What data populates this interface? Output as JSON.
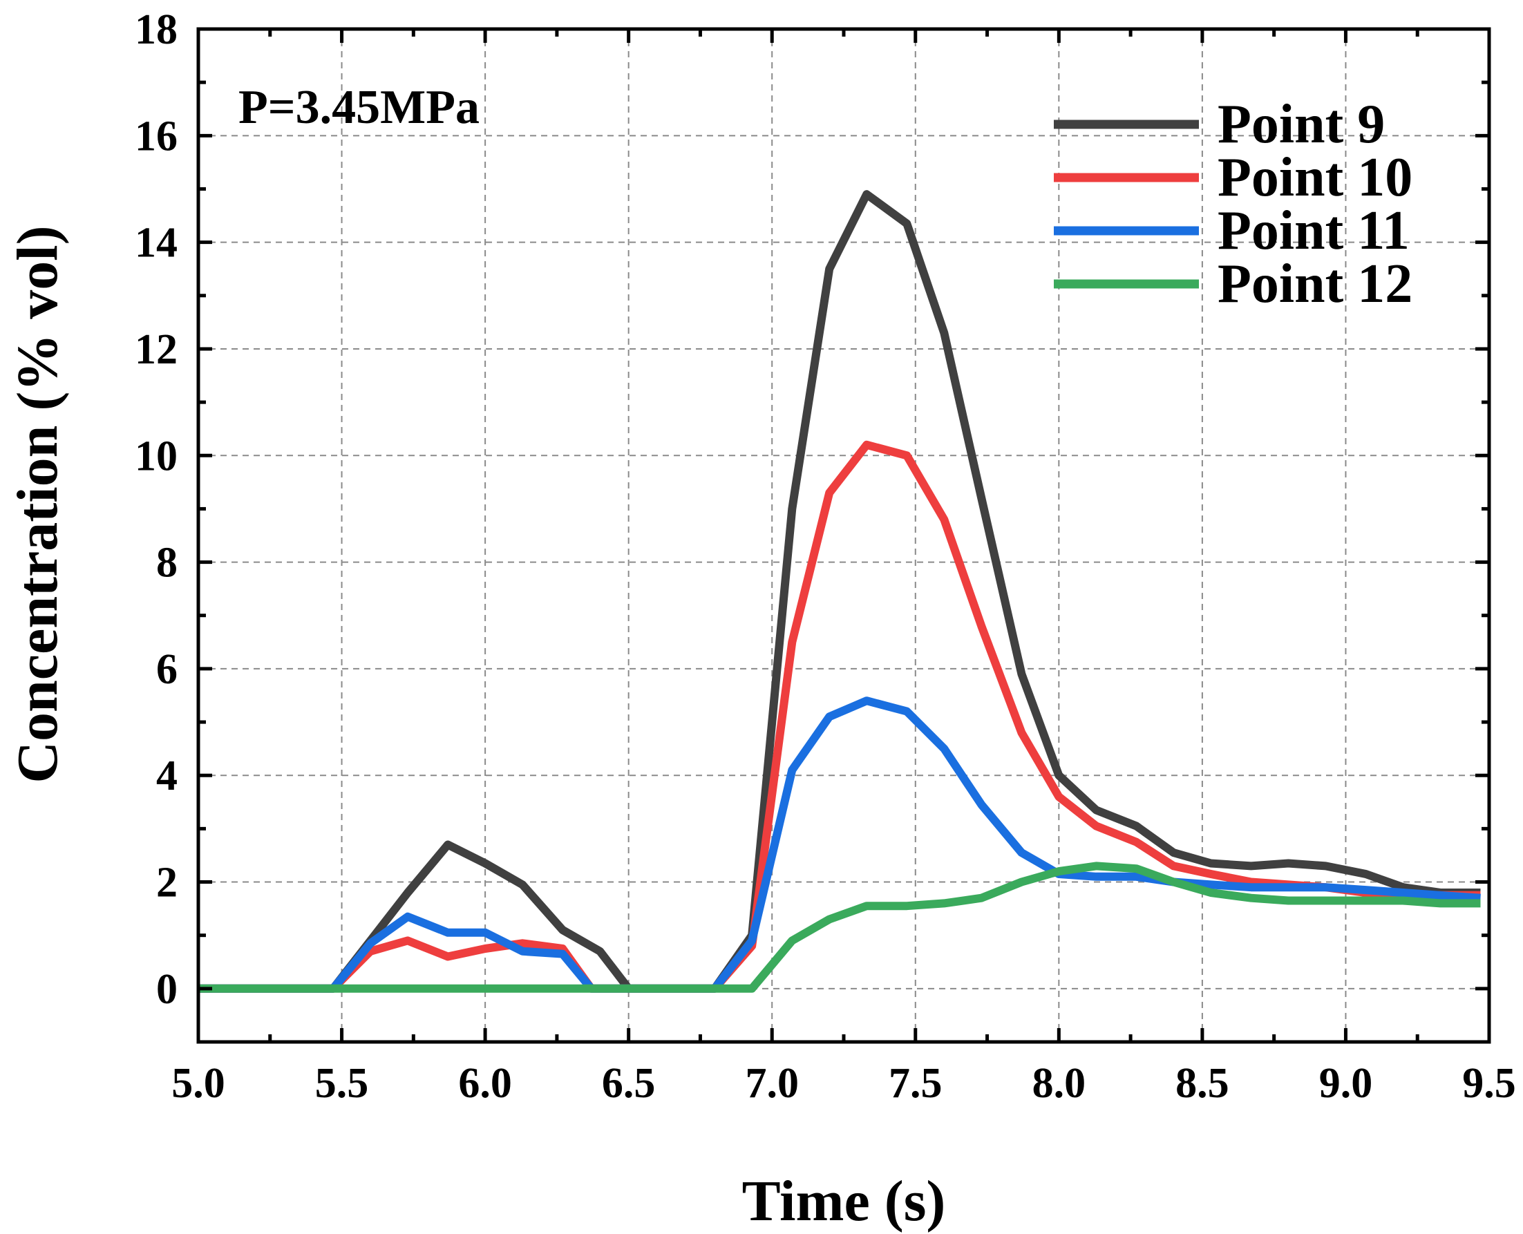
{
  "chart_data": {
    "type": "line",
    "title": "",
    "xlabel": "Time (s)",
    "ylabel": "Concentration (% vol)",
    "annotation": "P=3.45MPa",
    "xlim": [
      5.0,
      9.5
    ],
    "ylim": [
      -1,
      18
    ],
    "x_ticks": [
      5.0,
      5.5,
      6.0,
      6.5,
      7.0,
      7.5,
      8.0,
      8.5,
      9.0,
      9.5
    ],
    "x_tick_labels": [
      "5.0",
      "5.5",
      "6.0",
      "6.5",
      "7.0",
      "7.5",
      "8.0",
      "8.5",
      "9.0",
      "9.5"
    ],
    "y_ticks": [
      0,
      2,
      4,
      6,
      8,
      10,
      12,
      14,
      16,
      18
    ],
    "y_tick_labels": [
      "0",
      "2",
      "4",
      "6",
      "8",
      "10",
      "12",
      "14",
      "16",
      "18"
    ],
    "grid": true,
    "legend_position": "top-right",
    "series": [
      {
        "name": "Point 9",
        "color": "#404040",
        "x": [
          5.0,
          5.47,
          5.6,
          5.73,
          5.87,
          6.0,
          6.13,
          6.27,
          6.4,
          6.5,
          6.8,
          6.93,
          7.07,
          7.2,
          7.33,
          7.47,
          7.6,
          7.73,
          7.87,
          8.0,
          8.13,
          8.27,
          8.4,
          8.53,
          8.67,
          8.8,
          8.93,
          9.07,
          9.2,
          9.33,
          9.47
        ],
        "y": [
          0,
          0,
          0.9,
          1.8,
          2.7,
          2.35,
          1.95,
          1.1,
          0.7,
          0,
          0,
          1.0,
          9.0,
          13.5,
          14.9,
          14.35,
          12.3,
          9.2,
          5.9,
          4.0,
          3.35,
          3.05,
          2.55,
          2.35,
          2.3,
          2.35,
          2.3,
          2.15,
          1.9,
          1.8,
          1.8
        ]
      },
      {
        "name": "Point 10",
        "color": "#ee3e3e",
        "x": [
          5.0,
          5.47,
          5.6,
          5.73,
          5.87,
          6.0,
          6.13,
          6.27,
          6.37,
          6.5,
          6.8,
          6.93,
          7.07,
          7.2,
          7.33,
          7.47,
          7.6,
          7.73,
          7.87,
          8.0,
          8.13,
          8.27,
          8.4,
          8.53,
          8.67,
          8.8,
          8.93,
          9.07,
          9.2,
          9.33,
          9.47
        ],
        "y": [
          0,
          0,
          0.7,
          0.9,
          0.6,
          0.75,
          0.85,
          0.75,
          0,
          0,
          0,
          0.8,
          6.5,
          9.3,
          10.2,
          10.0,
          8.8,
          6.8,
          4.8,
          3.6,
          3.05,
          2.75,
          2.3,
          2.15,
          2.0,
          1.95,
          1.9,
          1.8,
          1.75,
          1.75,
          1.75
        ]
      },
      {
        "name": "Point 11",
        "color": "#1a6fe0",
        "x": [
          5.0,
          5.47,
          5.6,
          5.73,
          5.87,
          6.0,
          6.13,
          6.27,
          6.37,
          6.5,
          6.8,
          6.93,
          7.07,
          7.2,
          7.33,
          7.47,
          7.6,
          7.73,
          7.87,
          8.0,
          8.13,
          8.27,
          8.4,
          8.53,
          8.67,
          8.8,
          8.93,
          9.07,
          9.2,
          9.33,
          9.47
        ],
        "y": [
          0,
          0,
          0.85,
          1.35,
          1.05,
          1.05,
          0.7,
          0.65,
          0,
          0,
          0,
          0.9,
          4.1,
          5.1,
          5.4,
          5.2,
          4.5,
          3.45,
          2.55,
          2.15,
          2.1,
          2.1,
          2.0,
          1.95,
          1.9,
          1.9,
          1.9,
          1.85,
          1.8,
          1.75,
          1.7
        ]
      },
      {
        "name": "Point 12",
        "color": "#3aaa5c",
        "x": [
          5.0,
          6.93,
          7.07,
          7.2,
          7.33,
          7.47,
          7.6,
          7.73,
          7.87,
          8.0,
          8.13,
          8.27,
          8.4,
          8.53,
          8.67,
          8.8,
          8.93,
          9.07,
          9.2,
          9.33,
          9.47
        ],
        "y": [
          0,
          0,
          0.9,
          1.3,
          1.55,
          1.55,
          1.6,
          1.7,
          2.0,
          2.2,
          2.3,
          2.25,
          2.0,
          1.8,
          1.7,
          1.65,
          1.65,
          1.65,
          1.65,
          1.6,
          1.6
        ]
      }
    ]
  }
}
